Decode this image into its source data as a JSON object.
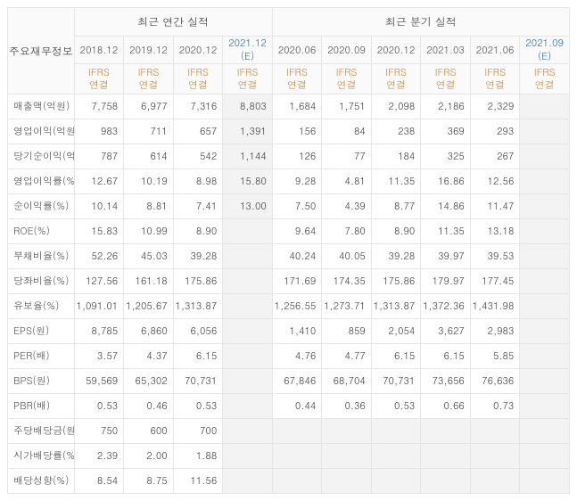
{
  "header": {
    "row_label": "주요재무정보",
    "group_annual": "최근 연간 실적",
    "group_quarterly": "최근 분기 실적",
    "annual_periods": [
      "2018.12",
      "2019.12",
      "2020.12",
      "2021.12 (E)"
    ],
    "quarterly_periods": [
      "2020.06",
      "2020.09",
      "2020.12",
      "2021.03",
      "2021.06",
      "2021.09 (E)"
    ],
    "basis": "IFRS\n연결"
  },
  "rows": [
    {
      "metric": "매출액(억원)",
      "a": [
        "7,758",
        "6,977",
        "7,316",
        "8,803"
      ],
      "q": [
        "1,684",
        "1,751",
        "2,098",
        "2,186",
        "2,329",
        ""
      ]
    },
    {
      "metric": "영업이익(억원)",
      "a": [
        "983",
        "711",
        "657",
        "1,391"
      ],
      "q": [
        "156",
        "84",
        "238",
        "369",
        "293",
        ""
      ]
    },
    {
      "metric": "당기순이익(억원)",
      "a": [
        "787",
        "614",
        "542",
        "1,144"
      ],
      "q": [
        "126",
        "77",
        "184",
        "325",
        "267",
        ""
      ]
    },
    {
      "metric": "영업이익률(%)",
      "a": [
        "12.67",
        "10.19",
        "8.98",
        "15.80"
      ],
      "q": [
        "9.28",
        "4.81",
        "11.35",
        "16.86",
        "12.56",
        ""
      ],
      "sep": true
    },
    {
      "metric": "순이익률(%)",
      "a": [
        "10.14",
        "8.81",
        "7.41",
        "13.00"
      ],
      "q": [
        "7.50",
        "4.39",
        "8.77",
        "14.86",
        "11.47",
        ""
      ]
    },
    {
      "metric": "ROE(%)",
      "a": [
        "15.83",
        "10.99",
        "8.90",
        ""
      ],
      "q": [
        "9.64",
        "7.80",
        "8.90",
        "11.35",
        "13.18",
        ""
      ]
    },
    {
      "metric": "부채비율(%)",
      "a": [
        "52.26",
        "45.03",
        "39.28",
        ""
      ],
      "q": [
        "40.24",
        "40.05",
        "39.28",
        "39.97",
        "39.53",
        ""
      ],
      "sep": true
    },
    {
      "metric": "당좌비율(%)",
      "a": [
        "127.56",
        "161.18",
        "175.86",
        ""
      ],
      "q": [
        "171.69",
        "174.35",
        "175.86",
        "179.97",
        "177.45",
        ""
      ]
    },
    {
      "metric": "유보율(%)",
      "a": [
        "1,091.01",
        "1,205.67",
        "1,313.87",
        ""
      ],
      "q": [
        "1,256.55",
        "1,273.71",
        "1,313.87",
        "1,372.36",
        "1,431.98",
        ""
      ]
    },
    {
      "metric": "EPS(원)",
      "a": [
        "8,785",
        "6,860",
        "6,056",
        ""
      ],
      "q": [
        "1,410",
        "859",
        "2,054",
        "3,627",
        "2,983",
        ""
      ],
      "sep": true
    },
    {
      "metric": "PER(배)",
      "a": [
        "3.57",
        "4.37",
        "6.15",
        ""
      ],
      "q": [
        "4.76",
        "4.77",
        "6.15",
        "6.15",
        "5.85",
        ""
      ]
    },
    {
      "metric": "BPS(원)",
      "a": [
        "59,569",
        "65,302",
        "70,731",
        ""
      ],
      "q": [
        "67,846",
        "68,704",
        "70,731",
        "73,656",
        "76,636",
        ""
      ]
    },
    {
      "metric": "PBR(배)",
      "a": [
        "0.53",
        "0.46",
        "0.53",
        ""
      ],
      "q": [
        "0.44",
        "0.36",
        "0.53",
        "0.66",
        "0.73",
        ""
      ]
    },
    {
      "metric": "주당배당금(원)",
      "a": [
        "750",
        "600",
        "700",
        ""
      ],
      "q": [
        "",
        "",
        "",
        "",
        "",
        ""
      ],
      "sep": true
    },
    {
      "metric": "시가배당률(%)",
      "a": [
        "2.39",
        "2.00",
        "1.88",
        ""
      ],
      "q": [
        "",
        "",
        "",
        "",
        "",
        ""
      ]
    },
    {
      "metric": "배당성향(%)",
      "a": [
        "8.54",
        "8.75",
        "11.56",
        ""
      ],
      "q": [
        "",
        "",
        "",
        "",
        "",
        ""
      ]
    }
  ]
}
